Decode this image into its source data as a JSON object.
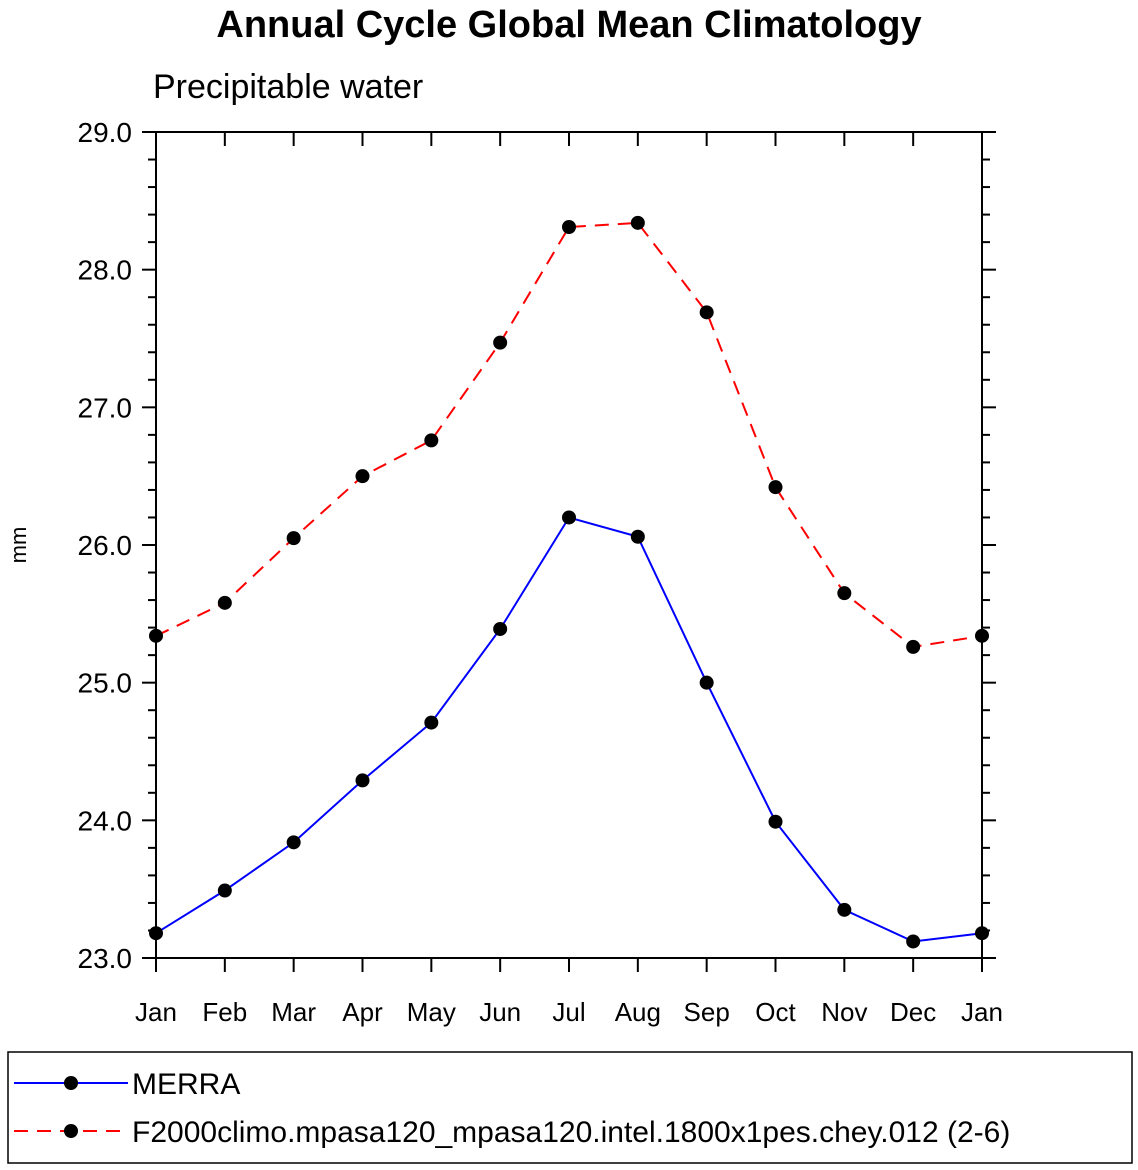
{
  "chart_data": {
    "type": "line",
    "title": "Annual Cycle Global Mean Climatology",
    "subtitle": "Precipitable water",
    "xlabel": "",
    "ylabel": "mm",
    "categories": [
      "Jan",
      "Feb",
      "Mar",
      "Apr",
      "May",
      "Jun",
      "Jul",
      "Aug",
      "Sep",
      "Oct",
      "Nov",
      "Dec",
      "Jan"
    ],
    "ylim": [
      23.0,
      29.0
    ],
    "yticks": [
      "23.0",
      "24.0",
      "25.0",
      "26.0",
      "27.0",
      "28.0",
      "29.0"
    ],
    "grid": false,
    "legend_position": "bottom",
    "series": [
      {
        "name": "MERRA",
        "color": "#0000ff",
        "dash": "solid",
        "marker": "circle",
        "values": [
          23.18,
          23.49,
          23.84,
          24.29,
          24.71,
          25.39,
          26.2,
          26.06,
          25.0,
          23.99,
          23.35,
          23.12,
          23.18
        ]
      },
      {
        "name": "F2000climo.mpasa120_mpasa120.intel.1800x1pes.chey.012 (2-6)",
        "color": "#ff0000",
        "dash": "dashed",
        "marker": "circle",
        "values": [
          25.34,
          25.58,
          26.05,
          26.5,
          26.76,
          27.47,
          28.31,
          28.34,
          27.69,
          26.42,
          25.65,
          25.26,
          25.34
        ]
      }
    ]
  }
}
